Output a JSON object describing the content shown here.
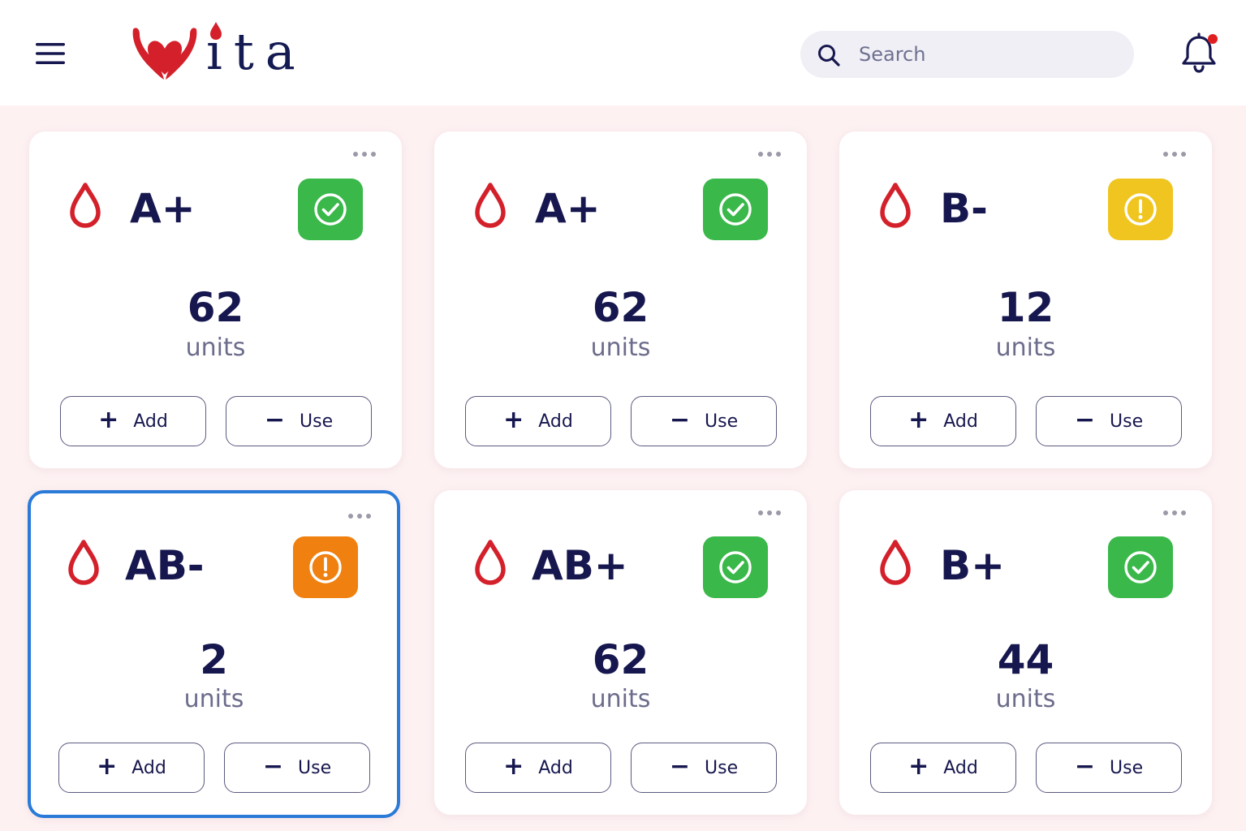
{
  "header": {
    "logo_text": "ita",
    "search": {
      "placeholder": "Search",
      "value": ""
    },
    "notification_badge": true
  },
  "colors": {
    "brand_red": "#d4202a",
    "status_ok": "#3ab84a",
    "status_low": "#f0c520",
    "status_critical": "#f0800f",
    "selected_border": "#2a7ad8"
  },
  "cards": [
    {
      "type": "A+",
      "count": "62",
      "units_label": "units",
      "status": "ok",
      "status_icon": "check-circle-icon",
      "add_label": "Add",
      "use_label": "Use",
      "selected": false
    },
    {
      "type": "A+",
      "count": "62",
      "units_label": "units",
      "status": "ok",
      "status_icon": "check-circle-icon",
      "add_label": "Add",
      "use_label": "Use",
      "selected": false
    },
    {
      "type": "B-",
      "count": "12",
      "units_label": "units",
      "status": "low",
      "status_icon": "exclamation-circle-icon",
      "add_label": "Add",
      "use_label": "Use",
      "selected": false
    },
    {
      "type": "AB-",
      "count": "2",
      "units_label": "units",
      "status": "critical",
      "status_icon": "exclamation-circle-icon",
      "add_label": "Add",
      "use_label": "Use",
      "selected": true
    },
    {
      "type": "AB+",
      "count": "62",
      "units_label": "units",
      "status": "ok",
      "status_icon": "check-circle-icon",
      "add_label": "Add",
      "use_label": "Use",
      "selected": false
    },
    {
      "type": "B+",
      "count": "44",
      "units_label": "units",
      "status": "ok",
      "status_icon": "check-circle-icon",
      "add_label": "Add",
      "use_label": "Use",
      "selected": false
    }
  ]
}
